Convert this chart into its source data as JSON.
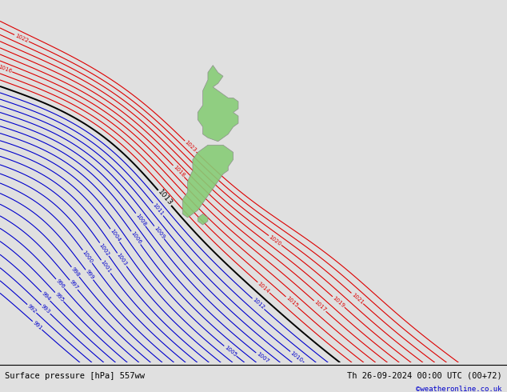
{
  "title_left": "Surface pressure [hPa] 557ww",
  "title_right": "Th 26-09-2024 00:00 UTC (00+72)",
  "copyright": "©weatheronline.co.uk",
  "bg_color": "#e0e0e0",
  "red_color": "#dd0000",
  "blue_color": "#0000cc",
  "black_color": "#000000",
  "green_color": "#88cc77",
  "green_edge": "#888888",
  "figsize": [
    6.34,
    4.9
  ],
  "dpi": 100,
  "blue_levels": [
    991,
    992,
    993,
    994,
    995,
    996,
    997,
    998,
    999,
    1000,
    1001,
    1002,
    1003,
    1004,
    1005,
    1006,
    1007,
    1008,
    1009,
    1010,
    1011,
    1012
  ],
  "black_levels": [
    1013
  ],
  "red_levels": [
    1014,
    1015,
    1016,
    1017,
    1018,
    1019,
    1020,
    1021,
    1022,
    1023
  ]
}
